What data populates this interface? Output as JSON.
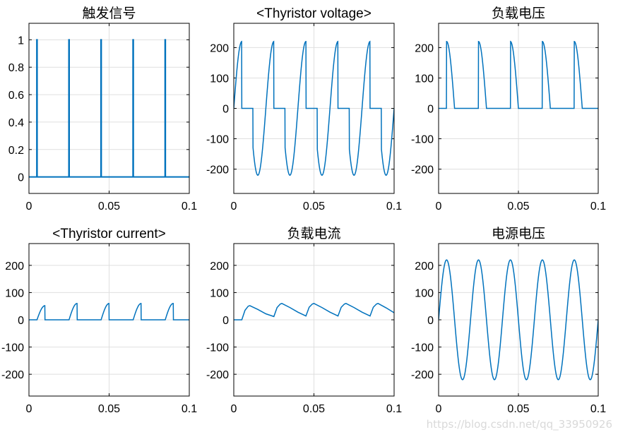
{
  "watermark": "https://blog.csdn.net/qq_33950926",
  "chart_data": [
    {
      "type": "line",
      "title": "触发信号",
      "signal": "trigger_pulse",
      "xlim": [
        0,
        0.1
      ],
      "ylim": [
        -0.12,
        1.12
      ],
      "xticks": [
        0,
        0.05,
        0.1
      ],
      "xtick_labels": [
        "0",
        "0.05",
        "0.1"
      ],
      "yticks": [
        0,
        0.2,
        0.4,
        0.6,
        0.8,
        1
      ],
      "ytick_labels": [
        "0",
        "0.2",
        "0.4",
        "0.6",
        "0.8",
        "1"
      ],
      "pulse_times": [
        0.005,
        0.025,
        0.045,
        0.065,
        0.085
      ],
      "grid": true,
      "color": "#0072BD"
    },
    {
      "type": "line",
      "title": "<Thyristor voltage>",
      "signal": "thyristor_voltage",
      "xlim": [
        0,
        0.1
      ],
      "ylim": [
        -280,
        280
      ],
      "xticks": [
        0,
        0.05,
        0.1
      ],
      "xtick_labels": [
        "0",
        "0.05",
        "0.1"
      ],
      "yticks": [
        -200,
        -100,
        0,
        100,
        200
      ],
      "ytick_labels": [
        "-200",
        "-100",
        "0",
        "100",
        "200"
      ],
      "amplitude": 220,
      "frequency_hz": 50,
      "firing_times": [
        0.005,
        0.025,
        0.045,
        0.065,
        0.085
      ],
      "grid": true,
      "color": "#0072BD"
    },
    {
      "type": "line",
      "title": "负载电压",
      "signal": "load_voltage",
      "xlim": [
        0,
        0.1
      ],
      "ylim": [
        -280,
        280
      ],
      "xticks": [
        0,
        0.05,
        0.1
      ],
      "xtick_labels": [
        "0",
        "0.05",
        "0.1"
      ],
      "yticks": [
        -200,
        -100,
        0,
        100,
        200
      ],
      "ytick_labels": [
        "-200",
        "-100",
        "0",
        "100",
        "200"
      ],
      "amplitude": 220,
      "frequency_hz": 50,
      "firing_times": [
        0.005,
        0.025,
        0.045,
        0.065,
        0.085
      ],
      "grid": true,
      "color": "#0072BD"
    },
    {
      "type": "line",
      "title": "<Thyristor current>",
      "signal": "thyristor_current",
      "xlim": [
        0,
        0.1
      ],
      "ylim": [
        -280,
        280
      ],
      "xticks": [
        0,
        0.05,
        0.1
      ],
      "xtick_labels": [
        "0",
        "0.05",
        "0.1"
      ],
      "yticks": [
        -200,
        -100,
        0,
        100,
        200
      ],
      "ytick_labels": [
        "-200",
        "-100",
        "0",
        "100",
        "200"
      ],
      "conduction_windows": [
        [
          0.005,
          0.01
        ],
        [
          0.025,
          0.03
        ],
        [
          0.045,
          0.05
        ],
        [
          0.065,
          0.07
        ],
        [
          0.085,
          0.09
        ]
      ],
      "peak_values": [
        52,
        60,
        60,
        60,
        60
      ],
      "grid": true,
      "color": "#0072BD"
    },
    {
      "type": "line",
      "title": "负载电流",
      "signal": "load_current",
      "xlim": [
        0,
        0.1
      ],
      "ylim": [
        -280,
        280
      ],
      "xticks": [
        0,
        0.05,
        0.1
      ],
      "xtick_labels": [
        "0",
        "0.05",
        "0.1"
      ],
      "yticks": [
        -200,
        -100,
        0,
        100,
        200
      ],
      "ytick_labels": [
        "-200",
        "-100",
        "0",
        "100",
        "200"
      ],
      "points": [
        [
          0,
          0
        ],
        [
          0.005,
          0
        ],
        [
          0.007,
          35
        ],
        [
          0.009,
          50
        ],
        [
          0.01,
          52
        ],
        [
          0.015,
          38
        ],
        [
          0.02,
          22
        ],
        [
          0.025,
          12
        ],
        [
          0.027,
          45
        ],
        [
          0.029,
          58
        ],
        [
          0.03,
          60
        ],
        [
          0.035,
          45
        ],
        [
          0.04,
          28
        ],
        [
          0.045,
          14
        ],
        [
          0.047,
          46
        ],
        [
          0.049,
          58
        ],
        [
          0.05,
          60
        ],
        [
          0.055,
          45
        ],
        [
          0.06,
          28
        ],
        [
          0.065,
          14
        ],
        [
          0.067,
          46
        ],
        [
          0.069,
          58
        ],
        [
          0.07,
          60
        ],
        [
          0.075,
          45
        ],
        [
          0.08,
          28
        ],
        [
          0.085,
          14
        ],
        [
          0.087,
          46
        ],
        [
          0.089,
          58
        ],
        [
          0.09,
          60
        ],
        [
          0.095,
          44
        ],
        [
          0.1,
          26
        ]
      ],
      "grid": true,
      "color": "#0072BD"
    },
    {
      "type": "line",
      "title": "电源电压",
      "signal": "source_voltage",
      "xlim": [
        0,
        0.1
      ],
      "ylim": [
        -280,
        280
      ],
      "xticks": [
        0,
        0.05,
        0.1
      ],
      "xtick_labels": [
        "0",
        "0.05",
        "0.1"
      ],
      "yticks": [
        -200,
        -100,
        0,
        100,
        200
      ],
      "ytick_labels": [
        "-200",
        "-100",
        "0",
        "100",
        "200"
      ],
      "amplitude": 220,
      "frequency_hz": 50,
      "grid": true,
      "color": "#0072BD"
    }
  ]
}
